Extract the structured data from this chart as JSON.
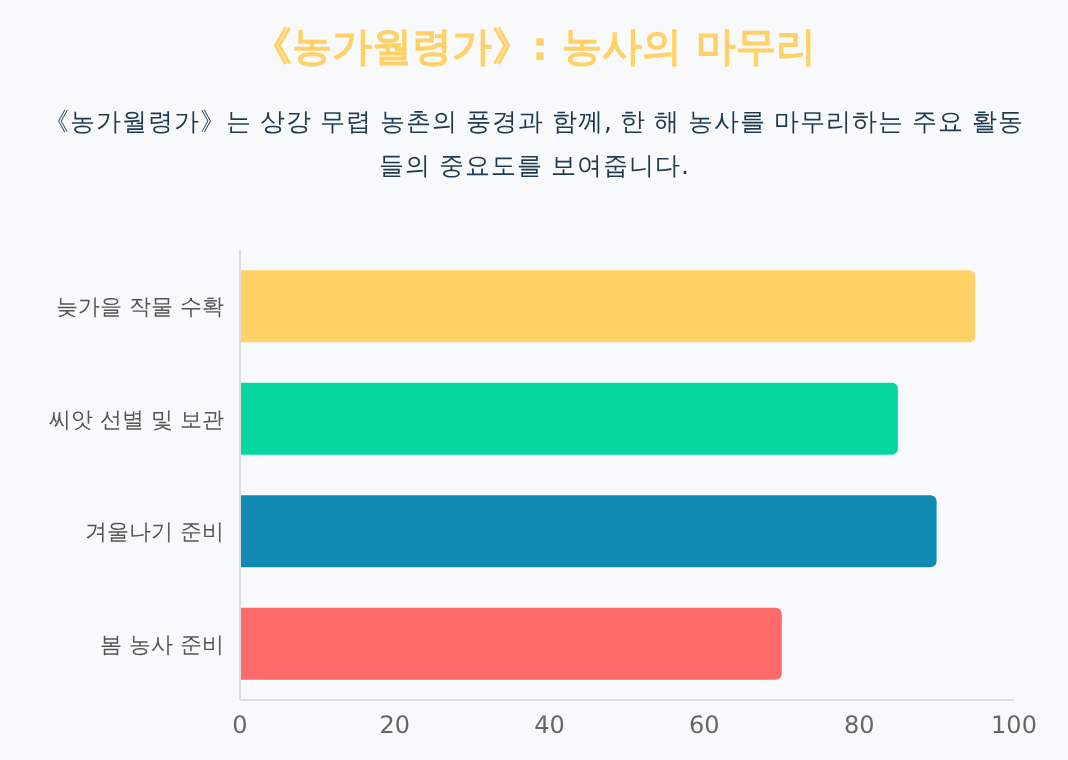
{
  "chart_data": {
    "type": "bar",
    "orientation": "horizontal",
    "title": "《농가월령가》: 농사의 마무리",
    "subtitle": "《농가월령가》는 상강 무렵 농촌의 풍경과 함께, 한 해 농사를 마무리하는 주요 활동들의 중요도를 보여줍니다.",
    "categories": [
      "늦가을 작물 수확",
      "씨앗 선별 및 보관",
      "겨울나기 준비",
      "봄 농사 준비"
    ],
    "values": [
      95,
      85,
      90,
      70
    ],
    "colors": [
      "#ffd166",
      "#06d6a0",
      "#118ab2",
      "#ff6b6b"
    ],
    "xlim": [
      0,
      100
    ],
    "xticks": [
      0,
      20,
      40,
      60,
      80,
      100
    ],
    "grid": false
  }
}
